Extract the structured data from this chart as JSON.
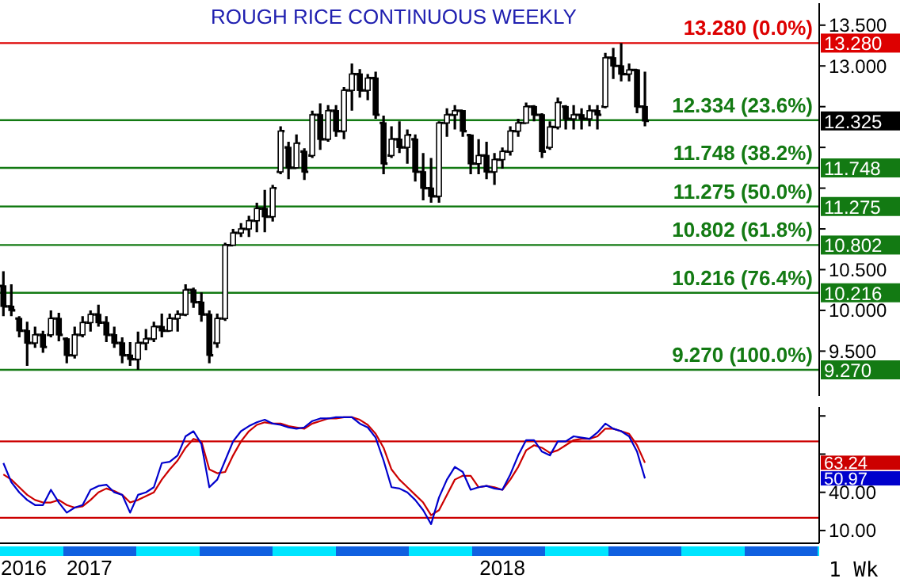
{
  "chart_data": [
    {
      "type": "candlestick",
      "title": "ROUGH RICE CONTINUOUS WEEKLY",
      "color": "#000000",
      "x": [
        "2016-10-17",
        "2016-10-24",
        "2016-10-31",
        "2016-11-07",
        "2016-11-14",
        "2016-11-21",
        "2016-11-28",
        "2016-12-05",
        "2016-12-12",
        "2016-12-19",
        "2016-12-26",
        "2017-01-02",
        "2017-01-09",
        "2017-01-16",
        "2017-01-23",
        "2017-01-30",
        "2017-02-06",
        "2017-02-13",
        "2017-02-20",
        "2017-02-27",
        "2017-03-06",
        "2017-03-13",
        "2017-03-20",
        "2017-03-27",
        "2017-04-03",
        "2017-04-10",
        "2017-04-17",
        "2017-04-24",
        "2017-05-01",
        "2017-05-08",
        "2017-05-15",
        "2017-05-22",
        "2017-05-29",
        "2017-06-05",
        "2017-06-12",
        "2017-06-19",
        "2017-06-26",
        "2017-07-03",
        "2017-07-10",
        "2017-07-17",
        "2017-07-24",
        "2017-07-31",
        "2017-08-07",
        "2017-08-14",
        "2017-08-21",
        "2017-08-28",
        "2017-09-04",
        "2017-09-11",
        "2017-09-18",
        "2017-09-25",
        "2017-10-02",
        "2017-10-09",
        "2017-10-16",
        "2017-10-23",
        "2017-10-30",
        "2017-11-06",
        "2017-11-13",
        "2017-11-20",
        "2017-11-27",
        "2017-12-04",
        "2017-12-11",
        "2017-12-18",
        "2017-12-25",
        "2018-01-01",
        "2018-01-08",
        "2018-01-15",
        "2018-01-22",
        "2018-01-29",
        "2018-02-05",
        "2018-02-12",
        "2018-02-19",
        "2018-02-26",
        "2018-03-05",
        "2018-03-12",
        "2018-03-19",
        "2018-03-26",
        "2018-04-02",
        "2018-04-09",
        "2018-04-16",
        "2018-04-23",
        "2018-04-30",
        "2018-05-07"
      ],
      "ohlc": [
        [
          10.3,
          10.48,
          9.93,
          10.05
        ],
        [
          10.05,
          10.32,
          9.93,
          10.0
        ],
        [
          9.9,
          9.93,
          9.67,
          9.75
        ],
        [
          9.75,
          9.86,
          9.32,
          9.6
        ],
        [
          9.6,
          9.8,
          9.54,
          9.7
        ],
        [
          9.7,
          9.75,
          9.48,
          9.55
        ],
        [
          9.7,
          10.0,
          9.67,
          9.9
        ],
        [
          9.9,
          9.97,
          9.62,
          9.7
        ],
        [
          9.65,
          9.67,
          9.35,
          9.45
        ],
        [
          9.45,
          9.8,
          9.41,
          9.7
        ],
        [
          9.7,
          9.93,
          9.67,
          9.85
        ],
        [
          9.85,
          10.0,
          9.74,
          9.95
        ],
        [
          9.95,
          10.07,
          9.8,
          9.85
        ],
        [
          9.85,
          9.93,
          9.61,
          9.7
        ],
        [
          9.7,
          9.8,
          9.54,
          9.6
        ],
        [
          9.6,
          9.67,
          9.35,
          9.45
        ],
        [
          9.45,
          9.61,
          9.32,
          9.4
        ],
        [
          9.4,
          9.74,
          9.27,
          9.6
        ],
        [
          9.6,
          9.77,
          9.51,
          9.65
        ],
        [
          9.65,
          9.86,
          9.61,
          9.8
        ],
        [
          9.8,
          9.96,
          9.67,
          9.75
        ],
        [
          9.75,
          9.96,
          9.74,
          9.9
        ],
        [
          9.9,
          10.0,
          9.74,
          9.95
        ],
        [
          9.95,
          10.32,
          9.93,
          10.25
        ],
        [
          10.25,
          10.28,
          10.03,
          10.1
        ],
        [
          10.1,
          10.22,
          9.86,
          9.95
        ],
        [
          9.95,
          10.0,
          9.35,
          9.45
        ],
        [
          9.6,
          9.96,
          9.54,
          9.9
        ],
        [
          9.9,
          10.83,
          9.87,
          10.8
        ],
        [
          10.8,
          11.0,
          10.8,
          10.95
        ],
        [
          10.95,
          11.07,
          10.9,
          11.0
        ],
        [
          11.0,
          11.16,
          10.9,
          11.1
        ],
        [
          11.1,
          11.32,
          10.96,
          11.25
        ],
        [
          11.25,
          11.48,
          10.96,
          11.15
        ],
        [
          11.15,
          11.54,
          11.09,
          11.5
        ],
        [
          11.7,
          12.26,
          11.67,
          12.2
        ],
        [
          12.0,
          12.07,
          11.61,
          11.75
        ],
        [
          11.75,
          12.16,
          11.74,
          12.05
        ],
        [
          11.95,
          11.99,
          11.6,
          11.7
        ],
        [
          11.9,
          12.45,
          11.87,
          12.4
        ],
        [
          12.4,
          12.54,
          11.97,
          12.1
        ],
        [
          12.1,
          12.52,
          12.07,
          12.45
        ],
        [
          12.45,
          12.52,
          12.13,
          12.2
        ],
        [
          12.2,
          12.74,
          12.1,
          12.7
        ],
        [
          12.7,
          13.03,
          12.45,
          12.9
        ],
        [
          12.9,
          12.96,
          12.61,
          12.7
        ],
        [
          12.7,
          12.9,
          12.58,
          12.85
        ],
        [
          12.85,
          12.93,
          12.35,
          12.4
        ],
        [
          12.3,
          12.39,
          11.67,
          11.8
        ],
        [
          11.9,
          12.26,
          11.87,
          12.1
        ],
        [
          12.1,
          12.32,
          11.93,
          12.0
        ],
        [
          12.0,
          12.22,
          11.8,
          12.15
        ],
        [
          12.1,
          12.16,
          11.58,
          11.7
        ],
        [
          11.7,
          11.93,
          11.35,
          11.5
        ],
        [
          11.5,
          11.87,
          11.32,
          11.4
        ],
        [
          11.4,
          12.32,
          11.32,
          12.3
        ],
        [
          12.3,
          12.48,
          12.13,
          12.4
        ],
        [
          12.4,
          12.52,
          12.22,
          12.45
        ],
        [
          12.45,
          12.45,
          12.13,
          12.2
        ],
        [
          12.15,
          12.16,
          11.67,
          11.8
        ],
        [
          11.8,
          12.1,
          11.67,
          11.9
        ],
        [
          11.9,
          12.07,
          11.61,
          11.7
        ],
        [
          11.7,
          11.93,
          11.54,
          11.85
        ],
        [
          11.85,
          12.0,
          11.74,
          11.95
        ],
        [
          11.95,
          12.26,
          11.9,
          12.2
        ],
        [
          12.2,
          12.35,
          12.13,
          12.3
        ],
        [
          12.3,
          12.55,
          12.29,
          12.5
        ],
        [
          12.5,
          12.52,
          12.32,
          12.4
        ],
        [
          12.4,
          12.42,
          11.87,
          11.95
        ],
        [
          12.0,
          12.32,
          11.97,
          12.25
        ],
        [
          12.25,
          12.61,
          12.22,
          12.55
        ],
        [
          12.5,
          12.52,
          12.22,
          12.35
        ],
        [
          12.35,
          12.52,
          12.22,
          12.4
        ],
        [
          12.4,
          12.48,
          12.22,
          12.35
        ],
        [
          12.35,
          12.52,
          12.26,
          12.45
        ],
        [
          12.45,
          12.52,
          12.22,
          12.4
        ],
        [
          12.5,
          13.16,
          12.48,
          13.1
        ],
        [
          13.1,
          13.22,
          12.84,
          13.0
        ],
        [
          13.0,
          13.28,
          12.81,
          12.9
        ],
        [
          12.9,
          13.03,
          12.81,
          12.95
        ],
        [
          12.95,
          12.96,
          12.42,
          12.5
        ],
        [
          12.5,
          12.93,
          12.26,
          12.325
        ]
      ],
      "xlim": [
        "2016-10-14",
        "2018-10-08"
      ],
      "ylim": [
        8.95,
        13.77
      ],
      "yticks": [
        {
          "value": 9.5,
          "label": "9.500"
        },
        {
          "value": 10,
          "label": "10.000"
        },
        {
          "value": 10.5,
          "label": "10.500"
        },
        {
          "value": 11,
          "label": null
        },
        {
          "value": 11.5,
          "label": null
        },
        {
          "value": 12,
          "label": null
        },
        {
          "value": 12.5,
          "label": null
        },
        {
          "value": 13,
          "label": "13.000"
        },
        {
          "value": 13.5,
          "label": "13.500"
        }
      ],
      "tick_labels": "y",
      "ref_lines": [
        {
          "axis": "y",
          "value": 13.28,
          "label": "13.280 (0.0%)",
          "color": "#dd0000"
        },
        {
          "axis": "y",
          "value": 12.334,
          "label": "12.334 (23.6%)",
          "color": "#137a13"
        },
        {
          "axis": "y",
          "value": 11.748,
          "label": "11.748 (38.2%)",
          "color": "#137a13"
        },
        {
          "axis": "y",
          "value": 11.275,
          "label": "11.275 (50.0%)",
          "color": "#137a13"
        },
        {
          "axis": "y",
          "value": 10.802,
          "label": "10.802 (61.8%)",
          "color": "#137a13"
        },
        {
          "axis": "y",
          "value": 10.216,
          "label": "10.216 (76.4%)",
          "color": "#137a13"
        },
        {
          "axis": "y",
          "value": 9.27,
          "label": "9.270 (100.0%)",
          "color": "#137a13"
        }
      ],
      "annotations": [
        "12.325",
        "13.280",
        "11.748",
        "11.275",
        "10.802",
        "10.216",
        "9.270"
      ]
    },
    {
      "type": "line",
      "marker": "none",
      "x": [
        "2016-10-17",
        "2016-10-24",
        "2016-10-31",
        "2016-11-07",
        "2016-11-14",
        "2016-11-21",
        "2016-11-28",
        "2016-12-05",
        "2016-12-12",
        "2016-12-19",
        "2016-12-26",
        "2017-01-02",
        "2017-01-09",
        "2017-01-16",
        "2017-01-23",
        "2017-01-30",
        "2017-02-06",
        "2017-02-13",
        "2017-02-20",
        "2017-02-27",
        "2017-03-06",
        "2017-03-13",
        "2017-03-20",
        "2017-03-27",
        "2017-04-03",
        "2017-04-10",
        "2017-04-17",
        "2017-04-24",
        "2017-05-01",
        "2017-05-08",
        "2017-05-15",
        "2017-05-22",
        "2017-05-29",
        "2017-06-05",
        "2017-06-12",
        "2017-06-19",
        "2017-06-26",
        "2017-07-03",
        "2017-07-10",
        "2017-07-17",
        "2017-07-24",
        "2017-07-31",
        "2017-08-07",
        "2017-08-14",
        "2017-08-21",
        "2017-08-28",
        "2017-09-04",
        "2017-09-11",
        "2017-09-18",
        "2017-09-25",
        "2017-10-02",
        "2017-10-09",
        "2017-10-16",
        "2017-10-23",
        "2017-10-30",
        "2017-11-06",
        "2017-11-13",
        "2017-11-20",
        "2017-11-27",
        "2017-12-04",
        "2017-12-11",
        "2017-12-18",
        "2017-12-25",
        "2018-01-01",
        "2018-01-08",
        "2018-01-15",
        "2018-01-22",
        "2018-01-29",
        "2018-02-05",
        "2018-02-12",
        "2018-02-19",
        "2018-02-26",
        "2018-03-05",
        "2018-03-12",
        "2018-03-19",
        "2018-03-26",
        "2018-04-02",
        "2018-04-09",
        "2018-04-16",
        "2018-04-23",
        "2018-04-30",
        "2018-05-07"
      ],
      "series": [
        {
          "color": "#cc0000",
          "values": [
            54,
            50,
            44,
            38,
            34,
            32,
            32,
            34,
            30,
            28,
            29,
            34,
            40,
            43,
            41,
            38,
            32,
            34,
            37,
            40,
            50,
            58,
            65,
            75,
            82,
            80,
            58,
            55,
            56,
            69,
            80,
            88,
            93,
            95,
            94,
            94,
            92,
            91,
            90,
            94,
            96,
            98,
            98,
            99,
            99,
            97,
            93,
            86,
            75,
            58,
            50,
            44,
            38,
            32,
            22,
            26,
            38,
            50,
            53,
            53,
            44,
            45,
            44,
            42,
            50,
            60,
            73,
            77,
            75,
            71,
            73,
            77,
            81,
            82,
            82,
            84,
            90,
            90,
            88,
            86,
            77,
            63.24
          ]
        },
        {
          "color": "#0000cc",
          "values": [
            63,
            48,
            40,
            34,
            30,
            30,
            42,
            32,
            24,
            28,
            30,
            42,
            45,
            46,
            40,
            38,
            24,
            38,
            40,
            44,
            63,
            64,
            69,
            84,
            88,
            78,
            44,
            50,
            65,
            80,
            88,
            92,
            95,
            97,
            94,
            93,
            91,
            90,
            91,
            96,
            98,
            98,
            99,
            99,
            99,
            94,
            91,
            83,
            65,
            44,
            43,
            40,
            34,
            26,
            15,
            36,
            50,
            60,
            56,
            42,
            44,
            45,
            43,
            42,
            54,
            69,
            81,
            81,
            72,
            69,
            80,
            80,
            84,
            83,
            82,
            87,
            94,
            90,
            88,
            84,
            72,
            50.97
          ]
        }
      ],
      "xlim": [
        "2016-10-14",
        "2018-10-08"
      ],
      "ylim": [
        0,
        107
      ],
      "xticks": [
        {
          "value": "2016-11-04",
          "label": "2016"
        },
        {
          "value": "2017-01-01",
          "label": "2017"
        },
        {
          "value": "2018-01-01",
          "label": "2018"
        }
      ],
      "yticks": [
        {
          "value": 10,
          "label": "10.00"
        },
        {
          "value": 40,
          "label": "40.00"
        },
        {
          "value": 70,
          "label": null
        },
        {
          "value": 100,
          "label": null
        }
      ],
      "ref_lines": [
        {
          "axis": "y",
          "value": 80,
          "color": "#cc0000"
        },
        {
          "axis": "y",
          "value": 20,
          "color": "#cc0000"
        }
      ],
      "annotations": [
        "63.24",
        "50.97",
        "1 Wk"
      ]
    }
  ]
}
